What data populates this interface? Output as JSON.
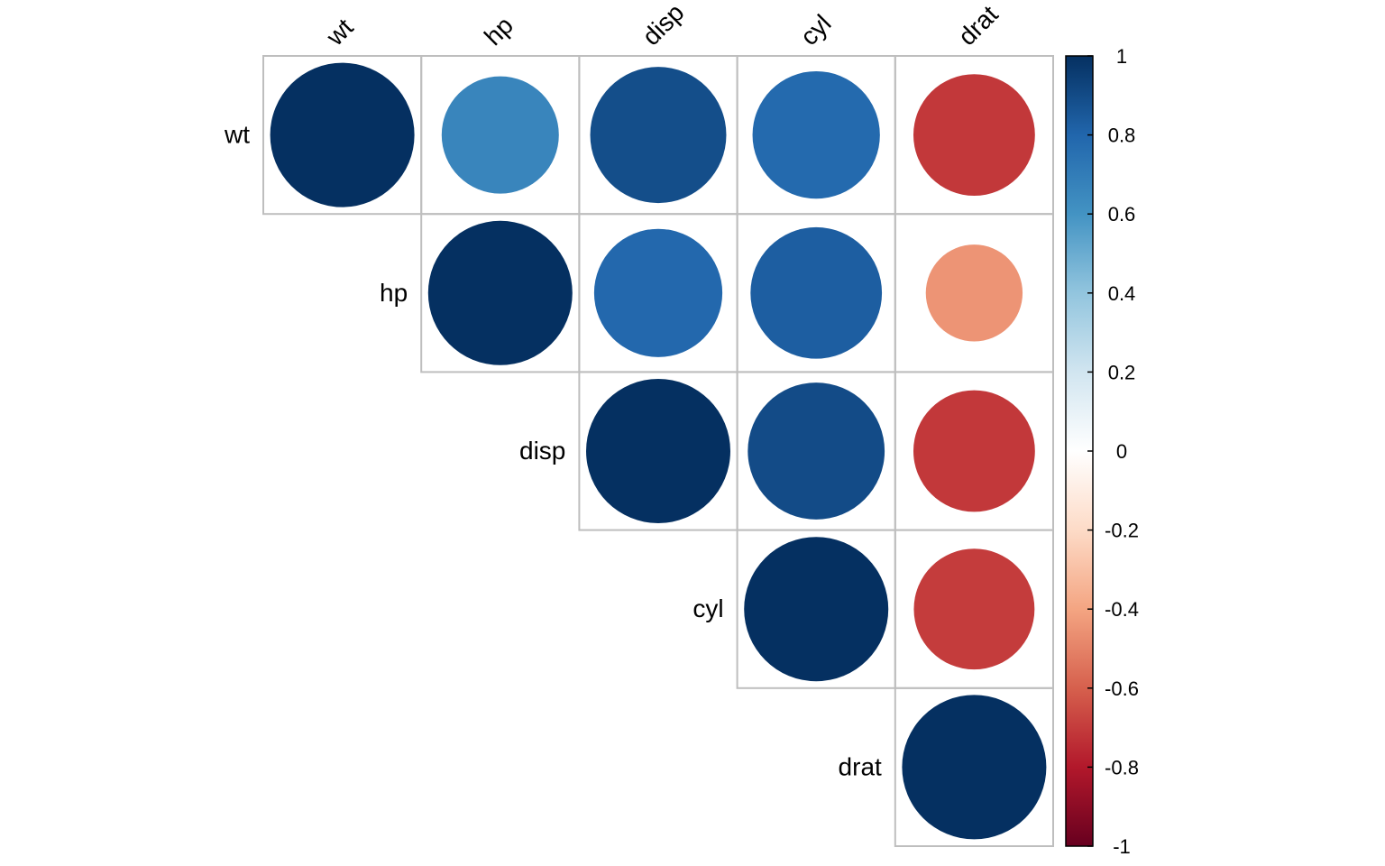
{
  "chart_data": {
    "type": "heatmap",
    "variables": [
      "wt",
      "hp",
      "disp",
      "cyl",
      "drat"
    ],
    "matrix": [
      [
        1.0,
        0.66,
        0.89,
        0.78,
        -0.71
      ],
      [
        0.66,
        1.0,
        0.79,
        0.83,
        -0.45
      ],
      [
        0.89,
        0.79,
        1.0,
        0.9,
        -0.71
      ],
      [
        0.78,
        0.83,
        0.9,
        1.0,
        -0.7
      ],
      [
        -0.71,
        -0.45,
        -0.71,
        -0.7,
        1.0
      ]
    ],
    "display": "upper-triangle",
    "glyph": "circle",
    "colorbar": {
      "range": [
        -1,
        1
      ],
      "ticks": [
        1,
        0.8,
        0.6,
        0.4,
        0.2,
        0,
        -0.2,
        -0.4,
        -0.6,
        -0.8,
        -1
      ],
      "tick_labels": [
        "1",
        "0.8",
        "0.6",
        "0.4",
        "0.2",
        "0",
        "-0.2",
        "-0.4",
        "-0.6",
        "-0.8",
        "-1"
      ],
      "stops": [
        "#67001F",
        "#B2182B",
        "#D6604D",
        "#F4A582",
        "#FDDBC7",
        "#FFFFFF",
        "#D1E5F0",
        "#92C5DE",
        "#4393C3",
        "#2166AC",
        "#053061"
      ]
    },
    "grid": true,
    "legend": "right"
  }
}
